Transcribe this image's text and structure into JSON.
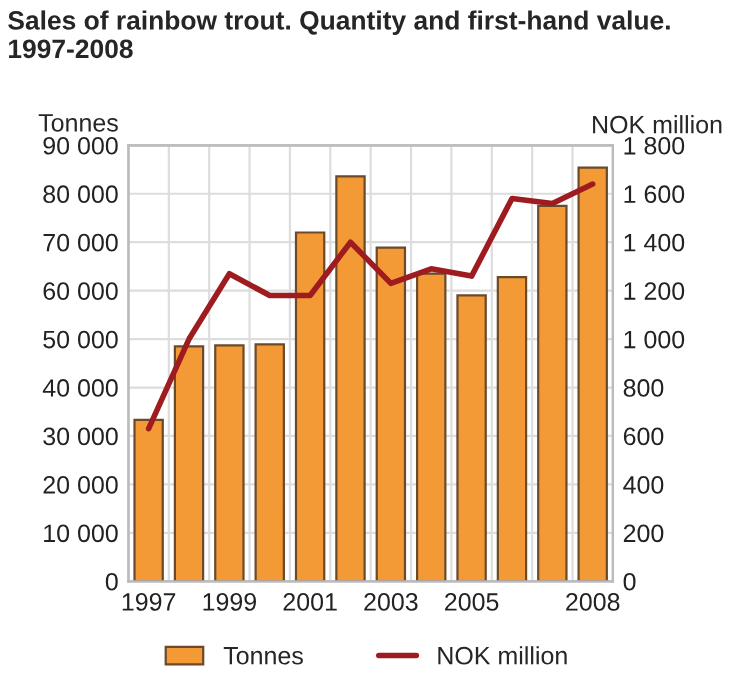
{
  "chart_data": {
    "type": "bar",
    "title": "Sales of rainbow trout. Quantity and first-hand value.\n1997-2008",
    "ylabel": "Tonnes",
    "y2label": "NOK million",
    "categories": [
      "1997",
      null,
      "1999",
      null,
      "2001",
      null,
      "2003",
      null,
      "2005",
      null,
      null,
      "2008"
    ],
    "series": [
      {
        "name": "Tonnes",
        "color": "#f39a36",
        "values": [
          33300,
          48500,
          48700,
          48900,
          72000,
          83600,
          68900,
          63500,
          59000,
          62800,
          77500,
          85400
        ]
      },
      {
        "name": "NOK million",
        "type": "line",
        "axis": "y2",
        "color": "#9e1b20",
        "values": [
          630,
          1000,
          1270,
          1180,
          1180,
          1400,
          1230,
          1290,
          1260,
          1580,
          1560,
          1640
        ]
      }
    ],
    "ylim": [
      0,
      90000
    ],
    "yticks": [
      {
        "value": 0,
        "label": "0"
      },
      {
        "value": 10000,
        "label": "10 000"
      },
      {
        "value": 20000,
        "label": "20 000"
      },
      {
        "value": 30000,
        "label": "30 000"
      },
      {
        "value": 40000,
        "label": "40 000"
      },
      {
        "value": 50000,
        "label": "50 000"
      },
      {
        "value": 60000,
        "label": "60 000"
      },
      {
        "value": 70000,
        "label": "70 000"
      },
      {
        "value": 80000,
        "label": "80 000"
      },
      {
        "value": 90000,
        "label": "90 000"
      }
    ],
    "y2lim": [
      0,
      1800
    ],
    "y2ticks": [
      0,
      200,
      400,
      600,
      800,
      {
        "value": 1000,
        "label": "1 000"
      },
      {
        "value": 1200,
        "label": "1 200"
      },
      {
        "value": 1400,
        "label": "1 400"
      },
      {
        "value": 1600,
        "label": "1 600"
      },
      {
        "value": 1800,
        "label": "1 800"
      }
    ],
    "grid": true,
    "legend": "bottom",
    "line_style": "solid",
    "marker": "none"
  }
}
